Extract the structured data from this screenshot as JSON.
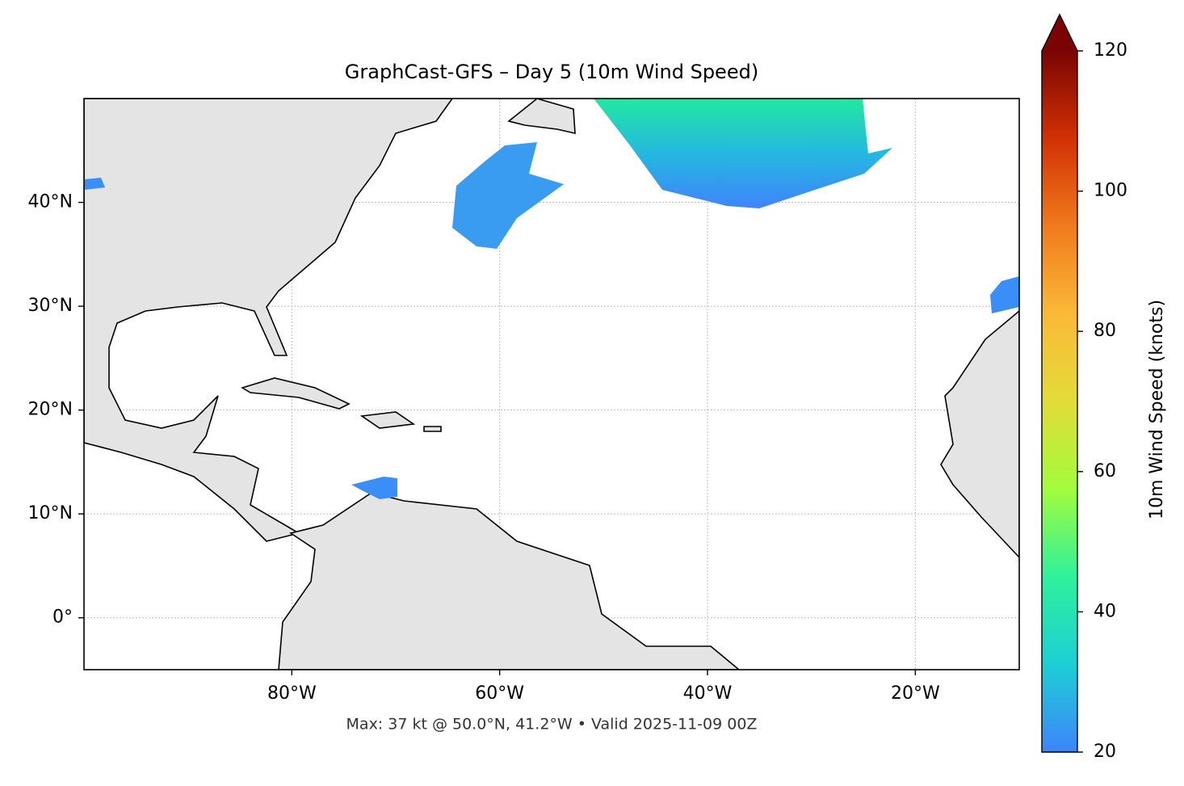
{
  "chart_data": {
    "type": "map",
    "title": "GraphCast-GFS – Day 5 (10m Wind Speed)",
    "note": "Max: 37 kt @ 50.0°N, 41.2°W • Valid 2025-11-09 00Z",
    "xlim": [
      -100,
      -10
    ],
    "ylim": [
      -5,
      50
    ],
    "xticks": [
      {
        "value": -80,
        "label": "80°W"
      },
      {
        "value": -60,
        "label": "60°W"
      },
      {
        "value": -40,
        "label": "40°W"
      },
      {
        "value": -20,
        "label": "20°W"
      }
    ],
    "yticks": [
      {
        "value": 0,
        "label": "0°"
      },
      {
        "value": 10,
        "label": "10°N"
      },
      {
        "value": 20,
        "label": "20°N"
      },
      {
        "value": 30,
        "label": "30°N"
      },
      {
        "value": 40,
        "label": "40°N"
      }
    ],
    "grid": true,
    "colorbar": {
      "label": "10m Wind Speed (knots)",
      "lim": [
        20,
        120
      ],
      "ticks": [
        20,
        40,
        60,
        80,
        100,
        120
      ],
      "colormap": [
        "#3f84fb",
        "#1ccfd5",
        "#2ef19c",
        "#a3fc3c",
        "#e2dc38",
        "#fbb938",
        "#f07a1c",
        "#d23105",
        "#7a0403"
      ]
    }
  }
}
